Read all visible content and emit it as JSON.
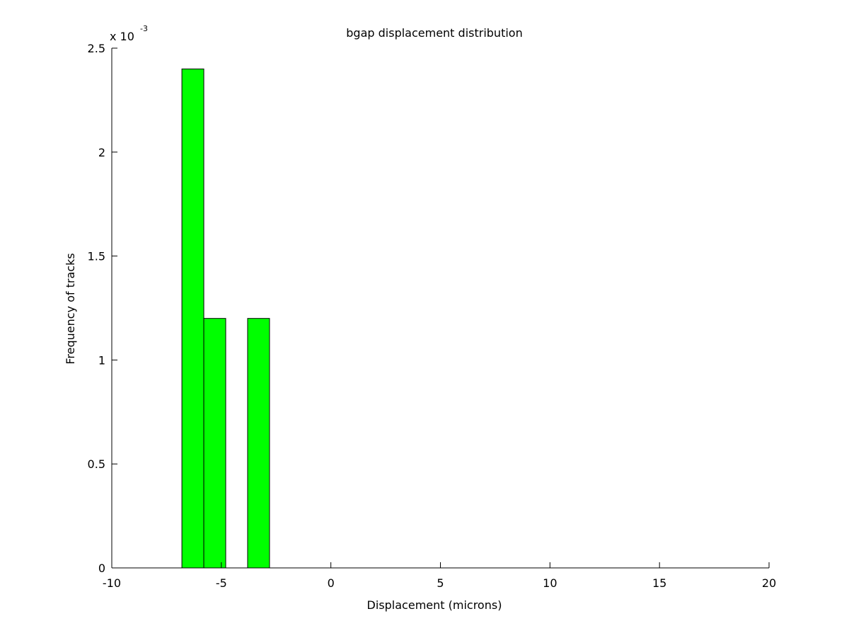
{
  "chart_data": {
    "type": "bar",
    "title": "bgap displacement distribution",
    "xlabel": "Displacement (microns)",
    "ylabel": "Frequency of tracks",
    "y_multiplier": {
      "base": "x 10",
      "exponent": "-3"
    },
    "xlim": [
      -10,
      20
    ],
    "ylim": [
      0,
      2.5
    ],
    "xticks": [
      -10,
      -5,
      0,
      5,
      10,
      15,
      20
    ],
    "yticks": [
      0,
      0.5,
      1,
      1.5,
      2,
      2.5
    ],
    "bin_width": 1,
    "bars": [
      {
        "center": -6.3,
        "value": 2.4
      },
      {
        "center": -5.3,
        "value": 1.2
      },
      {
        "center": -3.3,
        "value": 1.2
      }
    ],
    "grid": false,
    "bar_color": "#00ff00",
    "edge_color": "#000000"
  }
}
